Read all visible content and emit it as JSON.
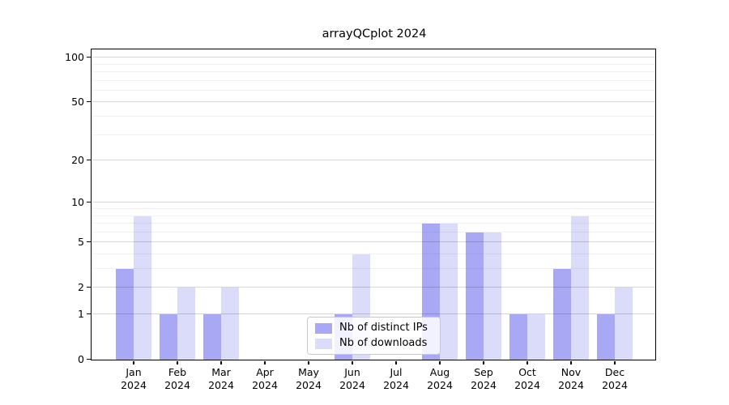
{
  "figure": {
    "background": "#ffffff"
  },
  "chart_data": {
    "type": "bar",
    "title": "arrayQCplot 2024",
    "categories": [
      "Jan",
      "Feb",
      "Mar",
      "Apr",
      "May",
      "Jun",
      "Jul",
      "Aug",
      "Sep",
      "Oct",
      "Nov",
      "Dec"
    ],
    "category_year": "2024",
    "series": [
      {
        "name": "Nb of distinct IPs",
        "color": "#a8a8f5",
        "values": [
          3,
          1,
          1,
          0,
          0,
          1,
          0,
          7,
          6,
          1,
          3,
          1
        ]
      },
      {
        "name": "Nb of downloads",
        "color": "#dbdbfa",
        "values": [
          8,
          2,
          2,
          0,
          0,
          4,
          0,
          7,
          6,
          1,
          8,
          2
        ]
      }
    ],
    "yscale": "log1p",
    "ylim": [
      0,
      112
    ],
    "y_ticks_major": [
      0,
      1,
      2,
      5,
      10,
      20,
      50,
      100
    ],
    "y_ticks_minor": [
      3,
      4,
      6,
      7,
      8,
      9,
      30,
      40,
      60,
      70,
      80,
      90
    ],
    "grid": true,
    "legend_position": "bottom-center",
    "xlabel": "",
    "ylabel": ""
  },
  "colors": {
    "spine": "#000000",
    "grid_major": "rgba(0,0,0,0.16)",
    "grid_minor": "rgba(0,0,0,0.055)",
    "text": "#000000"
  }
}
